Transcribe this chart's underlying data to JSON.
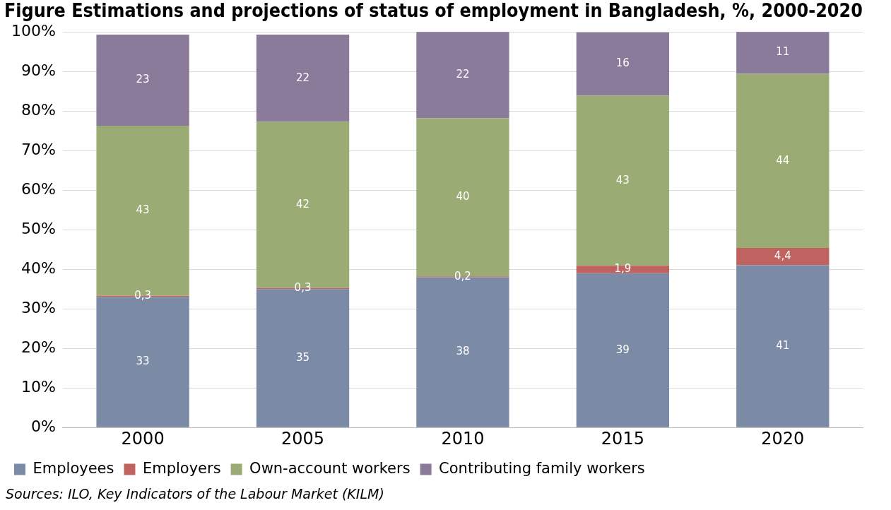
{
  "chart_data": {
    "type": "bar",
    "stacked": true,
    "title": "Figure Estimations and projections of status of employment in Bangladesh, %, 2000-2020",
    "categories": [
      "2000",
      "2005",
      "2010",
      "2015",
      "2020"
    ],
    "series": [
      {
        "name": "Employees",
        "color": "#7b8ba5",
        "values": [
          33,
          35,
          38,
          39,
          41
        ],
        "value_labels": [
          "33",
          "35",
          "38",
          "39",
          "41"
        ]
      },
      {
        "name": "Employers",
        "color": "#c0625f",
        "values": [
          0.3,
          0.3,
          0.2,
          1.9,
          4.4
        ],
        "value_labels": [
          "0,3",
          "0,3",
          "0,2",
          "1,9",
          "4,4"
        ]
      },
      {
        "name": "Own-account workers",
        "color": "#9bab74",
        "values": [
          43,
          42,
          40,
          43,
          44
        ],
        "value_labels": [
          "43",
          "42",
          "40",
          "43",
          "44"
        ]
      },
      {
        "name": "Contributing family workers",
        "color": "#8b7b9b",
        "values": [
          23,
          22,
          22,
          16,
          11
        ],
        "value_labels": [
          "23",
          "22",
          "22",
          "16",
          "11"
        ]
      }
    ],
    "ylim": [
      0,
      100
    ],
    "yticks": [
      {
        "value": 0,
        "label": "0%"
      },
      {
        "value": 10,
        "label": "10%"
      },
      {
        "value": 20,
        "label": "20%"
      },
      {
        "value": 30,
        "label": "30%"
      },
      {
        "value": 40,
        "label": "40%"
      },
      {
        "value": 50,
        "label": "50%"
      },
      {
        "value": 60,
        "label": "60%"
      },
      {
        "value": 70,
        "label": "70%"
      },
      {
        "value": 80,
        "label": "80%"
      },
      {
        "value": 90,
        "label": "90%"
      },
      {
        "value": 100,
        "label": "100%"
      }
    ],
    "grid": "y",
    "legend": "bottom",
    "annotations": [
      "Sources: ILO, Key Indicators of the Labour Market (KILM)"
    ]
  }
}
